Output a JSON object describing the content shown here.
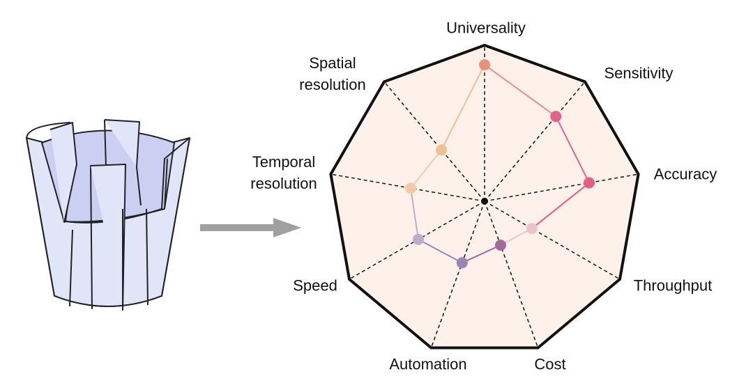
{
  "chart_data": {
    "type": "radar",
    "categories": [
      "Universality",
      "Sensitivity",
      "Accuracy",
      "Throughput",
      "Cost",
      "Automation",
      "Speed",
      "Temporal resolution",
      "Spatial resolution"
    ],
    "values": [
      0.875,
      0.71,
      0.68,
      0.35,
      0.3,
      0.42,
      0.49,
      0.48,
      0.43
    ],
    "colors": [
      "#ea907c",
      "#e2648c",
      "#e85c82",
      "#ebc3cb",
      "#a4699c",
      "#9c84b4",
      "#bcadcf",
      "#f2cba6",
      "#f0c08e"
    ],
    "ylim": [
      0,
      1
    ]
  }
}
